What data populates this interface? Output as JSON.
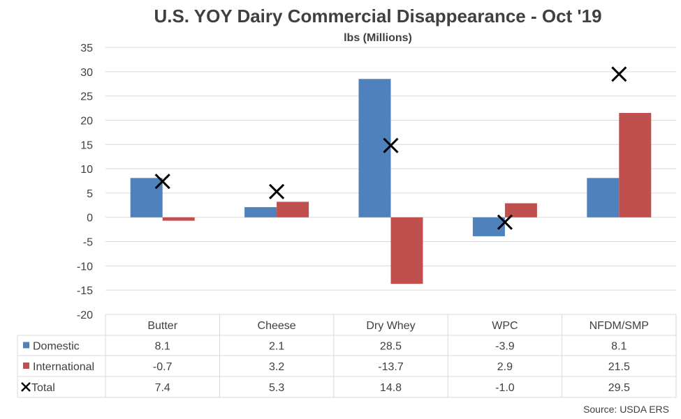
{
  "chart_data": {
    "type": "bar",
    "title": "U.S. YOY Dairy Commercial Disappearance - Oct '19",
    "subtitle": "lbs (Millions)",
    "categories": [
      "Butter",
      "Cheese",
      "Dry Whey",
      "WPC",
      "NFDM/SMP"
    ],
    "series": [
      {
        "name": "Domestic",
        "type": "bar",
        "color": "#4F81BD",
        "values": [
          8.1,
          2.1,
          28.5,
          -3.9,
          8.1
        ]
      },
      {
        "name": "International",
        "type": "bar",
        "color": "#C0504D",
        "values": [
          -0.7,
          3.2,
          -13.7,
          2.9,
          21.5
        ]
      },
      {
        "name": "Total",
        "type": "marker",
        "marker": "x",
        "color": "#000000",
        "values": [
          7.4,
          5.3,
          14.8,
          -1.0,
          29.5
        ]
      }
    ],
    "table_cells": [
      [
        "8.1",
        "2.1",
        "28.5",
        "-3.9",
        "8.1"
      ],
      [
        "-0.7",
        "3.2",
        "-13.7",
        "2.9",
        "21.5"
      ],
      [
        "7.4",
        "5.3",
        "14.8",
        "-1.0",
        "29.5"
      ]
    ],
    "ylim": [
      -20,
      35
    ],
    "yticks": [
      35,
      30,
      25,
      20,
      15,
      10,
      5,
      0,
      -5,
      -10,
      -15,
      -20
    ],
    "grid": true,
    "legend": "data table",
    "source": "Source: USDA ERS"
  }
}
